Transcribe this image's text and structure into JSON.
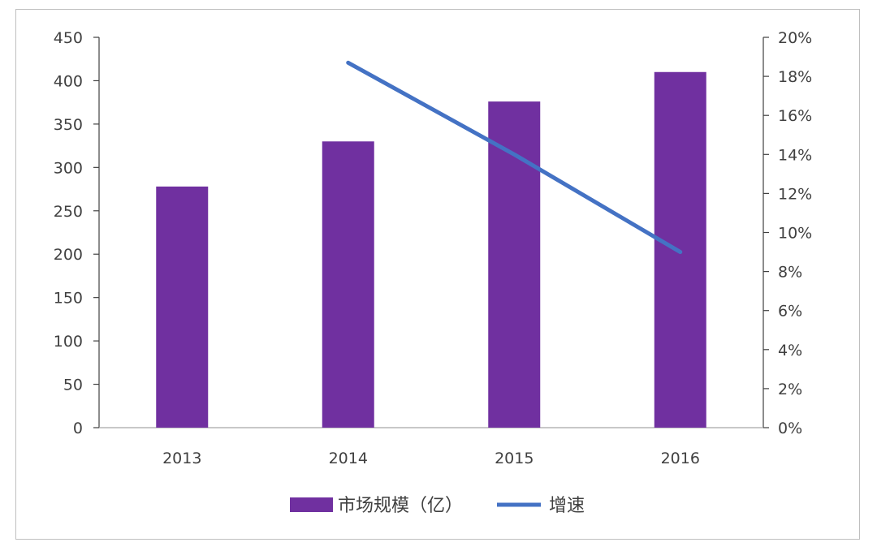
{
  "chart_data": {
    "type": "bar+line",
    "title": "",
    "categories": [
      "2013",
      "2014",
      "2015",
      "2016"
    ],
    "series": [
      {
        "name": "市场规模（亿）",
        "type": "bar",
        "axis": "left",
        "color": "#7030A0",
        "values": [
          278,
          330,
          376,
          410
        ]
      },
      {
        "name": "增速",
        "type": "line",
        "axis": "right",
        "color": "#4472C4",
        "values": [
          null,
          18.7,
          14.0,
          9.0
        ]
      }
    ],
    "y_left": {
      "min": 0,
      "max": 450,
      "step": 50,
      "ticks": [
        "0",
        "50",
        "100",
        "150",
        "200",
        "250",
        "300",
        "350",
        "400",
        "450"
      ]
    },
    "y_right": {
      "min": 0,
      "max": 20,
      "step": 2,
      "ticks": [
        "0%",
        "2%",
        "4%",
        "6%",
        "8%",
        "10%",
        "12%",
        "14%",
        "16%",
        "18%",
        "20%"
      ]
    },
    "grid": false,
    "legend_position": "bottom"
  }
}
